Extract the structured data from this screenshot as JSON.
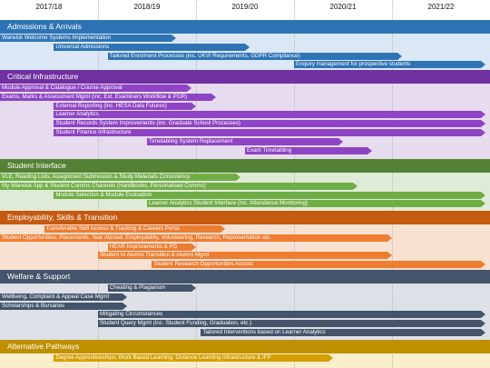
{
  "years": [
    "2017/18",
    "2018/19",
    "2019/20",
    "2020/21",
    "2021/22"
  ],
  "lanes": [
    {
      "title": "Admissions & Arrivals",
      "head_color": "#2e74b5",
      "bg_color": "#dbe7f4",
      "bar_color": "#2e74b5",
      "text_color": "#ffffff",
      "bars": [
        {
          "label": "Warwick Welcome Systems Implementation",
          "start": 0.0,
          "end": 1.8
        },
        {
          "label": "Universal Admissions",
          "start": 0.55,
          "end": 2.55
        },
        {
          "label": "Tailored Enrolment Processes (inc. UKVI Requirements, GDPR Compliance)",
          "start": 1.1,
          "end": 4.1
        },
        {
          "label": "Enquiry management for prospective students",
          "start": 3.0,
          "end": 4.95
        }
      ]
    },
    {
      "title": "Critical Infrastructure",
      "head_color": "#7030a0",
      "bg_color": "#e6dbef",
      "bar_color": "#8e44c4",
      "text_color": "#ffffff",
      "bars": [
        {
          "label": "Module Approval & Catalogue / Course Approval",
          "start": 0.0,
          "end": 1.95
        },
        {
          "label": "Exams, Marks & Assessment Mgmt (inc. Ext. Examiners Workflow & PGR)",
          "start": 0.0,
          "end": 2.2
        },
        {
          "label": "External Reporting (inc. HESA Data Futures)",
          "start": 0.55,
          "end": 2.0
        },
        {
          "label": "Learner Analytics",
          "start": 0.55,
          "end": 4.95
        },
        {
          "label": "Student Records System Improvements (inc. Graduate School Processes)",
          "start": 0.55,
          "end": 4.95
        },
        {
          "label": "Student Finance Infrastructure",
          "start": 0.55,
          "end": 4.95
        },
        {
          "label": "Timetabling System Replacement",
          "start": 1.5,
          "end": 3.5
        },
        {
          "label": "Exam Timetabling",
          "start": 2.5,
          "end": 3.8
        }
      ]
    },
    {
      "title": "Student Interface",
      "head_color": "#548235",
      "bg_color": "#e0ebd7",
      "bar_color": "#70ad47",
      "text_color": "#ffffff",
      "bars": [
        {
          "label": "VLE, Reading Lists, Assignment Submission & Study Materials Consistency",
          "start": 0.0,
          "end": 2.45
        },
        {
          "label": "My Warwick App & Student Comms Channels (Handbooks, Personalised Comms)",
          "start": 0.0,
          "end": 3.65
        },
        {
          "label": "Module Selection & Module Evaluation",
          "start": 0.55,
          "end": 4.95
        },
        {
          "label": "Learner Analytics Student Interface (inc. Attendance Monitoring)",
          "start": 1.5,
          "end": 4.95
        }
      ]
    },
    {
      "title": "Employability, Skills & Transition",
      "head_color": "#c55a11",
      "bg_color": "#f8e1d1",
      "bar_color": "#ed7d31",
      "text_color": "#ffffff",
      "bars": [
        {
          "label": "Transferable Skill Access & Tracking & Careers Portal",
          "start": 0.45,
          "end": 2.3
        },
        {
          "label": "Student Opportunities: Placements, Year Abroad, Employability, Volunteering, Research, Representation etc.",
          "start": 0.0,
          "end": 4.0
        },
        {
          "label": "HEAR Improvements & PG",
          "start": 1.1,
          "end": 2.0
        },
        {
          "label": "Student to Alumni Transition & Alumni Mgmt",
          "start": 1.0,
          "end": 4.0
        },
        {
          "label": "Student Research Opportunities Access",
          "start": 1.55,
          "end": 4.95
        }
      ]
    },
    {
      "title": "Welfare & Support",
      "head_color": "#44546a",
      "bg_color": "#dde1e7",
      "bar_color": "#44546a",
      "text_color": "#ffffff",
      "bars": [
        {
          "label": "Cheating & Plagiarism",
          "start": 1.1,
          "end": 2.0
        },
        {
          "label": "Wellbeing, Complaint & Appeal Case Mgmt",
          "start": 0.0,
          "end": 1.3
        },
        {
          "label": "Scholarships & Bursaries",
          "start": 0.0,
          "end": 1.3
        },
        {
          "label": "Mitigating Circumstances",
          "start": 1.0,
          "end": 4.95
        },
        {
          "label": "Student Query Mgmt (inc. Student Funding, Graduation, etc.)",
          "start": 1.0,
          "end": 4.95
        },
        {
          "label": "Tailored Interventions based on Learner Analytics",
          "start": 2.05,
          "end": 4.95
        }
      ]
    },
    {
      "title": "Alternative Pathways",
      "head_color": "#bf9000",
      "bg_color": "#fbeecb",
      "bar_color": "#d4a000",
      "text_color": "#ffffff",
      "bars": [
        {
          "label": "Degree Apprenticeships, Work Based Learning, Distance Learning Infrastructure & IFP",
          "start": 0.55,
          "end": 3.4
        }
      ]
    }
  ]
}
